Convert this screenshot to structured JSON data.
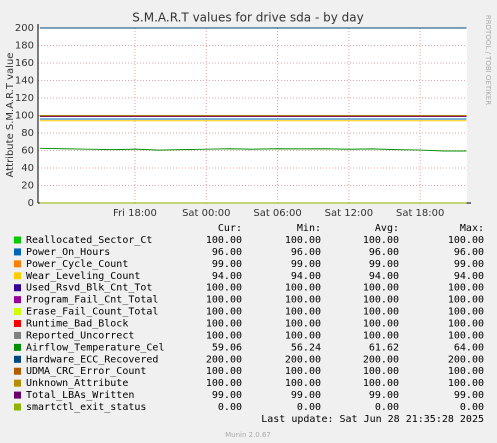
{
  "chart_data": {
    "type": "line",
    "title": "S.M.A.R.T values for drive sda - by day",
    "y_label": "Attribute S.M.A.R.T value",
    "side_note": "RRDTOOL / TOBI OETIKER",
    "footer": "Munin 2.0.67",
    "last_update": "Last update: Sat Jun 28 21:35:28 2025",
    "xlim": [
      9.84,
      45.94
    ],
    "xticks": [
      {
        "value": 18,
        "label": "Fri 18:00"
      },
      {
        "value": 24,
        "label": "Sat 00:00"
      },
      {
        "value": 30,
        "label": "Sat 06:00"
      },
      {
        "value": 36,
        "label": "Sat 12:00"
      },
      {
        "value": 42,
        "label": "Sat 18:00"
      }
    ],
    "ylim": [
      0,
      200
    ],
    "yticks": [
      0,
      20,
      40,
      60,
      80,
      100,
      120,
      140,
      160,
      180,
      200
    ],
    "grid": true,
    "columns": [
      "Cur:",
      "Min:",
      "Avg:",
      "Max:"
    ],
    "series": [
      {
        "name": "Reallocated_Sector_Ct",
        "color": "#00cc00",
        "x": [
          10,
          45.9
        ],
        "values": [
          100,
          100
        ],
        "stats": [
          "100.00",
          "100.00",
          "100.00",
          "100.00"
        ]
      },
      {
        "name": "Power_On_Hours",
        "color": "#0066b3",
        "x": [
          10,
          45.9
        ],
        "values": [
          96,
          96
        ],
        "stats": [
          "96.00",
          "96.00",
          "96.00",
          "96.00"
        ]
      },
      {
        "name": "Power_Cycle_Count",
        "color": "#ff8000",
        "x": [
          10,
          45.9
        ],
        "values": [
          99,
          99
        ],
        "stats": [
          "99.00",
          "99.00",
          "99.00",
          "99.00"
        ]
      },
      {
        "name": "Wear_Leveling_Count",
        "color": "#ffcc00",
        "x": [
          10,
          45.9
        ],
        "values": [
          94,
          94
        ],
        "stats": [
          "94.00",
          "94.00",
          "94.00",
          "94.00"
        ]
      },
      {
        "name": "Used_Rsvd_Blk_Cnt_Tot",
        "color": "#330099",
        "x": [
          10,
          45.9
        ],
        "values": [
          100,
          100
        ],
        "stats": [
          "100.00",
          "100.00",
          "100.00",
          "100.00"
        ]
      },
      {
        "name": "Program_Fail_Cnt_Total",
        "color": "#990099",
        "x": [
          10,
          45.9
        ],
        "values": [
          100,
          100
        ],
        "stats": [
          "100.00",
          "100.00",
          "100.00",
          "100.00"
        ]
      },
      {
        "name": "Erase_Fail_Count_Total",
        "color": "#ccff00",
        "x": [
          10,
          45.9
        ],
        "values": [
          100,
          100
        ],
        "stats": [
          "100.00",
          "100.00",
          "100.00",
          "100.00"
        ]
      },
      {
        "name": "Runtime_Bad_Block",
        "color": "#ff0000",
        "x": [
          10,
          45.9
        ],
        "values": [
          100,
          100
        ],
        "stats": [
          "100.00",
          "100.00",
          "100.00",
          "100.00"
        ]
      },
      {
        "name": "Reported_Uncorrect",
        "color": "#808080",
        "x": [
          10,
          45.9
        ],
        "values": [
          100,
          100
        ],
        "stats": [
          "100.00",
          "100.00",
          "100.00",
          "100.00"
        ]
      },
      {
        "name": "Airflow_Temperature_Cel",
        "color": "#008f00",
        "x": [
          10,
          12,
          14,
          16,
          18,
          20,
          22,
          24,
          26,
          28,
          30,
          32,
          34,
          36,
          38,
          40,
          42,
          44,
          45.9
        ],
        "values": [
          62.5,
          62,
          61.5,
          61,
          61.5,
          60.5,
          61,
          61.5,
          62,
          61.5,
          62,
          61.8,
          62,
          61.5,
          61.8,
          61,
          60.5,
          59.5,
          59.5
        ],
        "stats": [
          "59.06",
          "56.24",
          "61.62",
          "64.00"
        ]
      },
      {
        "name": "Hardware_ECC_Recovered",
        "color": "#00487d",
        "x": [
          10,
          45.9
        ],
        "values": [
          200,
          200
        ],
        "stats": [
          "200.00",
          "200.00",
          "200.00",
          "200.00"
        ]
      },
      {
        "name": "UDMA_CRC_Error_Count",
        "color": "#b35a00",
        "x": [
          10,
          45.9
        ],
        "values": [
          100,
          100
        ],
        "stats": [
          "100.00",
          "100.00",
          "100.00",
          "100.00"
        ]
      },
      {
        "name": "Unknown_Attribute",
        "color": "#b38f00",
        "x": [
          10,
          45.9
        ],
        "values": [
          100,
          100
        ],
        "stats": [
          "100.00",
          "100.00",
          "100.00",
          "100.00"
        ]
      },
      {
        "name": "Total_LBAs_Written",
        "color": "#6b006b",
        "x": [
          10,
          45.9
        ],
        "values": [
          99,
          99
        ],
        "stats": [
          "99.00",
          "99.00",
          "99.00",
          "99.00"
        ]
      },
      {
        "name": "smartctl_exit_status",
        "color": "#8fb300",
        "x": [
          10,
          45.9
        ],
        "values": [
          0,
          0
        ],
        "stats": [
          "0.00",
          "0.00",
          "0.00",
          "0.00"
        ]
      }
    ]
  }
}
